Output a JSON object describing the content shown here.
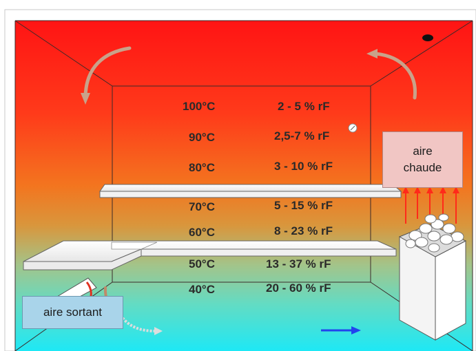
{
  "levels": [
    {
      "temperature": "100°C",
      "humidity": "2 - 5 % rF"
    },
    {
      "temperature": "90°C",
      "humidity": "2,5-7 % rF"
    },
    {
      "temperature": "80°C",
      "humidity": "3 - 10 % rF"
    },
    {
      "temperature": "70°C",
      "humidity": "5 - 15 % rF"
    },
    {
      "temperature": "60°C",
      "humidity": "8 - 23 % rF"
    },
    {
      "temperature": "50°C",
      "humidity": "13 - 37 % rF"
    },
    {
      "temperature": "40°C",
      "humidity": "20 - 60 % rF"
    }
  ],
  "labels": {
    "hot_air_line1": "aire",
    "hot_air_line2": "chaude",
    "outgoing_air": "aire sortant"
  },
  "colors": {
    "top": "#ff1a1a",
    "middle": "#f28a2e",
    "lower": "#8fcf9c",
    "bottom": "#22e6f2",
    "arrow_hot": "#ff2a1a",
    "arrow_out": "#2244ee"
  }
}
